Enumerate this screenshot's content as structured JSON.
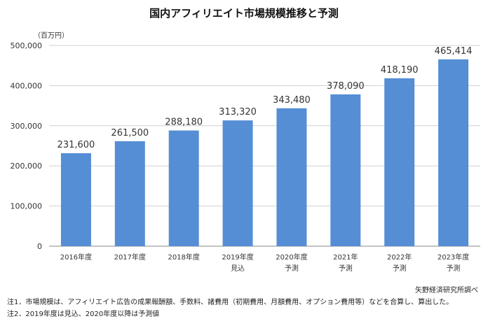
{
  "chart_data": {
    "type": "bar",
    "title": "国内アフィリエイト市場規模推移と予測",
    "ylabel": "（百万円）",
    "categories": [
      [
        "2016年度"
      ],
      [
        "2017年度"
      ],
      [
        "2018年度"
      ],
      [
        "2019年度",
        "見込"
      ],
      [
        "2020年度",
        "予測"
      ],
      [
        "2021年",
        "予測"
      ],
      [
        "2022年",
        "予測"
      ],
      [
        "2023年度",
        "予測"
      ]
    ],
    "values": [
      231600,
      261500,
      288180,
      313320,
      343480,
      378090,
      418190,
      465414
    ],
    "value_labels": [
      "231,600",
      "261,500",
      "288,180",
      "313,320",
      "343,480",
      "378,090",
      "418,190",
      "465,414"
    ],
    "ylim": [
      0,
      500000
    ],
    "yticks": [
      0,
      100000,
      200000,
      300000,
      400000,
      500000
    ],
    "ytick_labels": [
      "0",
      "100,000",
      "200,000",
      "300,000",
      "400,000",
      "500,000"
    ],
    "grid": true,
    "bar_color": "#558ED5"
  },
  "source": "矢野経済研究所調べ",
  "notes": [
    "注1．市場規模は、アフィリエイト広告の成果報酬額、手数料、諸費用（初期費用、月額費用、オプション費用等）などを合算し、算出した。",
    "注2．2019年度は見込、2020年度以降は予測値"
  ]
}
